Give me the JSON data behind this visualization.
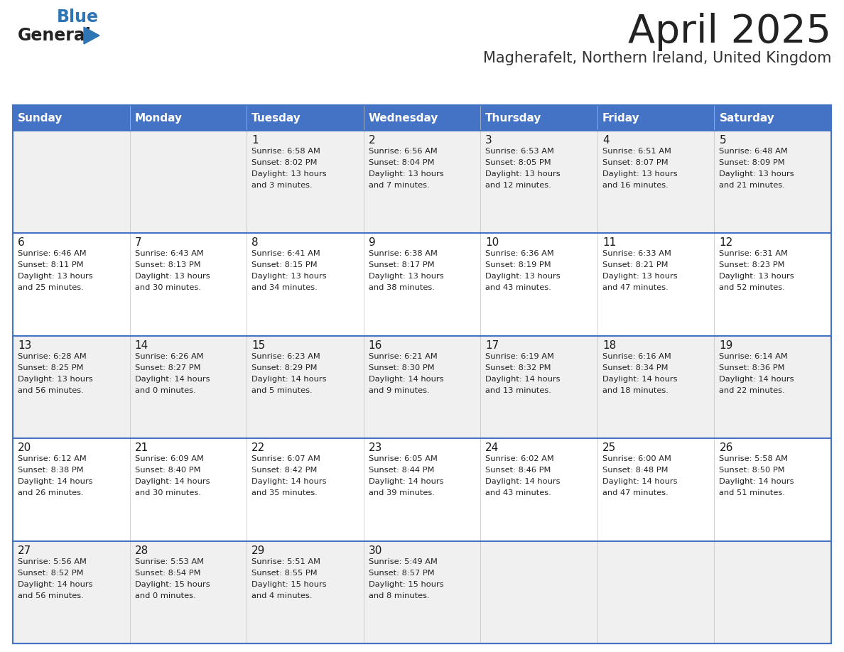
{
  "title": "April 2025",
  "subtitle": "Magherafelt, Northern Ireland, United Kingdom",
  "header_bg": "#4472C4",
  "header_text_color": "#FFFFFF",
  "cell_bg_odd": "#F0F0F0",
  "cell_bg_even": "#FFFFFF",
  "cell_border_color": "#4472C4",
  "days_of_week": [
    "Sunday",
    "Monday",
    "Tuesday",
    "Wednesday",
    "Thursday",
    "Friday",
    "Saturday"
  ],
  "title_color": "#222222",
  "subtitle_color": "#333333",
  "logo_general_color": "#222222",
  "logo_blue_color": "#2E75B6",
  "calendar_data": [
    [
      {
        "day": "",
        "sunrise": "",
        "sunset": "",
        "daylight": ""
      },
      {
        "day": "",
        "sunrise": "",
        "sunset": "",
        "daylight": ""
      },
      {
        "day": "1",
        "sunrise": "Sunrise: 6:58 AM",
        "sunset": "Sunset: 8:02 PM",
        "daylight": "Daylight: 13 hours\nand 3 minutes."
      },
      {
        "day": "2",
        "sunrise": "Sunrise: 6:56 AM",
        "sunset": "Sunset: 8:04 PM",
        "daylight": "Daylight: 13 hours\nand 7 minutes."
      },
      {
        "day": "3",
        "sunrise": "Sunrise: 6:53 AM",
        "sunset": "Sunset: 8:05 PM",
        "daylight": "Daylight: 13 hours\nand 12 minutes."
      },
      {
        "day": "4",
        "sunrise": "Sunrise: 6:51 AM",
        "sunset": "Sunset: 8:07 PM",
        "daylight": "Daylight: 13 hours\nand 16 minutes."
      },
      {
        "day": "5",
        "sunrise": "Sunrise: 6:48 AM",
        "sunset": "Sunset: 8:09 PM",
        "daylight": "Daylight: 13 hours\nand 21 minutes."
      }
    ],
    [
      {
        "day": "6",
        "sunrise": "Sunrise: 6:46 AM",
        "sunset": "Sunset: 8:11 PM",
        "daylight": "Daylight: 13 hours\nand 25 minutes."
      },
      {
        "day": "7",
        "sunrise": "Sunrise: 6:43 AM",
        "sunset": "Sunset: 8:13 PM",
        "daylight": "Daylight: 13 hours\nand 30 minutes."
      },
      {
        "day": "8",
        "sunrise": "Sunrise: 6:41 AM",
        "sunset": "Sunset: 8:15 PM",
        "daylight": "Daylight: 13 hours\nand 34 minutes."
      },
      {
        "day": "9",
        "sunrise": "Sunrise: 6:38 AM",
        "sunset": "Sunset: 8:17 PM",
        "daylight": "Daylight: 13 hours\nand 38 minutes."
      },
      {
        "day": "10",
        "sunrise": "Sunrise: 6:36 AM",
        "sunset": "Sunset: 8:19 PM",
        "daylight": "Daylight: 13 hours\nand 43 minutes."
      },
      {
        "day": "11",
        "sunrise": "Sunrise: 6:33 AM",
        "sunset": "Sunset: 8:21 PM",
        "daylight": "Daylight: 13 hours\nand 47 minutes."
      },
      {
        "day": "12",
        "sunrise": "Sunrise: 6:31 AM",
        "sunset": "Sunset: 8:23 PM",
        "daylight": "Daylight: 13 hours\nand 52 minutes."
      }
    ],
    [
      {
        "day": "13",
        "sunrise": "Sunrise: 6:28 AM",
        "sunset": "Sunset: 8:25 PM",
        "daylight": "Daylight: 13 hours\nand 56 minutes."
      },
      {
        "day": "14",
        "sunrise": "Sunrise: 6:26 AM",
        "sunset": "Sunset: 8:27 PM",
        "daylight": "Daylight: 14 hours\nand 0 minutes."
      },
      {
        "day": "15",
        "sunrise": "Sunrise: 6:23 AM",
        "sunset": "Sunset: 8:29 PM",
        "daylight": "Daylight: 14 hours\nand 5 minutes."
      },
      {
        "day": "16",
        "sunrise": "Sunrise: 6:21 AM",
        "sunset": "Sunset: 8:30 PM",
        "daylight": "Daylight: 14 hours\nand 9 minutes."
      },
      {
        "day": "17",
        "sunrise": "Sunrise: 6:19 AM",
        "sunset": "Sunset: 8:32 PM",
        "daylight": "Daylight: 14 hours\nand 13 minutes."
      },
      {
        "day": "18",
        "sunrise": "Sunrise: 6:16 AM",
        "sunset": "Sunset: 8:34 PM",
        "daylight": "Daylight: 14 hours\nand 18 minutes."
      },
      {
        "day": "19",
        "sunrise": "Sunrise: 6:14 AM",
        "sunset": "Sunset: 8:36 PM",
        "daylight": "Daylight: 14 hours\nand 22 minutes."
      }
    ],
    [
      {
        "day": "20",
        "sunrise": "Sunrise: 6:12 AM",
        "sunset": "Sunset: 8:38 PM",
        "daylight": "Daylight: 14 hours\nand 26 minutes."
      },
      {
        "day": "21",
        "sunrise": "Sunrise: 6:09 AM",
        "sunset": "Sunset: 8:40 PM",
        "daylight": "Daylight: 14 hours\nand 30 minutes."
      },
      {
        "day": "22",
        "sunrise": "Sunrise: 6:07 AM",
        "sunset": "Sunset: 8:42 PM",
        "daylight": "Daylight: 14 hours\nand 35 minutes."
      },
      {
        "day": "23",
        "sunrise": "Sunrise: 6:05 AM",
        "sunset": "Sunset: 8:44 PM",
        "daylight": "Daylight: 14 hours\nand 39 minutes."
      },
      {
        "day": "24",
        "sunrise": "Sunrise: 6:02 AM",
        "sunset": "Sunset: 8:46 PM",
        "daylight": "Daylight: 14 hours\nand 43 minutes."
      },
      {
        "day": "25",
        "sunrise": "Sunrise: 6:00 AM",
        "sunset": "Sunset: 8:48 PM",
        "daylight": "Daylight: 14 hours\nand 47 minutes."
      },
      {
        "day": "26",
        "sunrise": "Sunrise: 5:58 AM",
        "sunset": "Sunset: 8:50 PM",
        "daylight": "Daylight: 14 hours\nand 51 minutes."
      }
    ],
    [
      {
        "day": "27",
        "sunrise": "Sunrise: 5:56 AM",
        "sunset": "Sunset: 8:52 PM",
        "daylight": "Daylight: 14 hours\nand 56 minutes."
      },
      {
        "day": "28",
        "sunrise": "Sunrise: 5:53 AM",
        "sunset": "Sunset: 8:54 PM",
        "daylight": "Daylight: 15 hours\nand 0 minutes."
      },
      {
        "day": "29",
        "sunrise": "Sunrise: 5:51 AM",
        "sunset": "Sunset: 8:55 PM",
        "daylight": "Daylight: 15 hours\nand 4 minutes."
      },
      {
        "day": "30",
        "sunrise": "Sunrise: 5:49 AM",
        "sunset": "Sunset: 8:57 PM",
        "daylight": "Daylight: 15 hours\nand 8 minutes."
      },
      {
        "day": "",
        "sunrise": "",
        "sunset": "",
        "daylight": ""
      },
      {
        "day": "",
        "sunrise": "",
        "sunset": "",
        "daylight": ""
      },
      {
        "day": "",
        "sunrise": "",
        "sunset": "",
        "daylight": ""
      }
    ]
  ]
}
